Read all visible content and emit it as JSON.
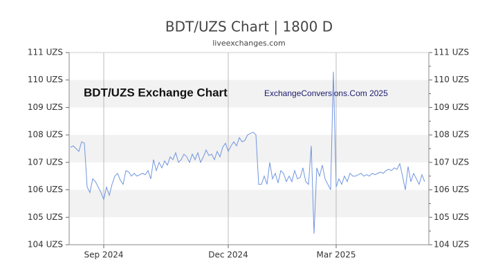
{
  "chart_data": {
    "type": "line",
    "title": "BDT/UZS Chart | 1800 D",
    "subtitle": "liveexchanges.com",
    "annotations": [
      "BDT/UZS Exchange Chart",
      "ExchangeConversions.Com 2025"
    ],
    "categories": [
      null,
      null,
      null,
      null,
      null,
      null,
      null,
      null,
      null,
      null,
      null,
      null,
      "Sep 2024",
      null,
      null,
      null,
      null,
      null,
      null,
      null,
      null,
      null,
      null,
      null,
      null,
      null,
      null,
      null,
      null,
      null,
      null,
      null,
      null,
      null,
      null,
      null,
      null,
      null,
      null,
      null,
      null,
      null,
      null,
      null,
      null,
      null,
      null,
      null,
      null,
      null,
      null,
      null,
      null,
      null,
      null,
      null,
      null,
      "Dec 2024",
      null,
      null,
      null,
      null,
      null,
      null,
      null,
      null,
      null,
      null,
      null,
      null,
      null,
      null,
      null,
      null,
      null,
      null,
      null,
      null,
      null,
      null,
      null,
      null,
      null,
      null,
      null,
      null,
      null,
      null,
      null,
      null,
      null,
      null,
      null,
      null,
      null,
      null,
      "Mar 2025",
      null,
      null,
      null,
      null,
      null,
      null,
      null,
      null,
      null,
      null,
      null,
      null,
      null,
      null,
      null,
      null,
      null,
      null,
      null,
      null,
      null,
      null,
      null,
      null,
      null,
      null,
      null,
      null,
      null,
      null,
      null,
      null
    ],
    "values": [
      107.55,
      107.6,
      107.5,
      107.4,
      107.75,
      107.7,
      106.1,
      105.9,
      106.4,
      106.3,
      106.1,
      105.9,
      105.65,
      106.1,
      105.8,
      106.2,
      106.5,
      106.6,
      106.35,
      106.2,
      106.7,
      106.65,
      106.5,
      106.6,
      106.5,
      106.55,
      106.6,
      106.55,
      106.7,
      106.4,
      107.1,
      106.7,
      107.0,
      106.8,
      107.05,
      106.9,
      107.2,
      107.1,
      107.35,
      107.0,
      107.1,
      107.3,
      107.2,
      107.0,
      107.3,
      107.1,
      107.35,
      107.0,
      107.2,
      107.45,
      107.25,
      107.3,
      107.1,
      107.4,
      107.2,
      107.55,
      107.7,
      107.4,
      107.6,
      107.75,
      107.6,
      107.9,
      107.75,
      107.8,
      108.0,
      108.05,
      108.1,
      108.0,
      106.2,
      106.2,
      106.5,
      106.2,
      107.0,
      106.4,
      106.6,
      106.25,
      106.7,
      106.6,
      106.3,
      106.5,
      106.3,
      106.7,
      106.4,
      106.45,
      106.8,
      106.3,
      106.2,
      107.6,
      104.4,
      106.8,
      106.5,
      106.9,
      106.4,
      106.2,
      106.0,
      110.3,
      106.1,
      106.4,
      106.2,
      106.5,
      106.3,
      106.6,
      106.5,
      106.5,
      106.55,
      106.6,
      106.5,
      106.55,
      106.5,
      106.6,
      106.55,
      106.6,
      106.65,
      106.6,
      106.7,
      106.75,
      106.7,
      106.8,
      106.75,
      106.95,
      106.5,
      106.0,
      106.85,
      106.3,
      106.6,
      106.4,
      106.2,
      106.55,
      106.3
    ],
    "color": "#6f95e0",
    "ylim": [
      104,
      111
    ],
    "yticks": [
      {
        "value": 104,
        "label": "104 UZS"
      },
      {
        "value": 105,
        "label": "105 UZS"
      },
      {
        "value": 106,
        "label": "106 UZS"
      },
      {
        "value": 107,
        "label": "107 UZS"
      },
      {
        "value": 108,
        "label": "108 UZS"
      },
      {
        "value": 109,
        "label": "109 UZS"
      },
      {
        "value": 110,
        "label": "110 UZS"
      },
      {
        "value": 111,
        "label": "111 UZS"
      }
    ],
    "y2lim": [
      104,
      111
    ],
    "y2ticks": [
      {
        "value": 104,
        "label": "104 UZS"
      },
      {
        "value": 105,
        "label": "105 UZS"
      },
      {
        "value": 106,
        "label": "106 UZS"
      },
      {
        "value": 107,
        "label": "107 UZS"
      },
      {
        "value": 108,
        "label": "108 UZS"
      },
      {
        "value": 109,
        "label": "109 UZS"
      },
      {
        "value": 110,
        "label": "110 UZS"
      },
      {
        "value": 111,
        "label": "111 UZS"
      }
    ],
    "grid": true
  }
}
